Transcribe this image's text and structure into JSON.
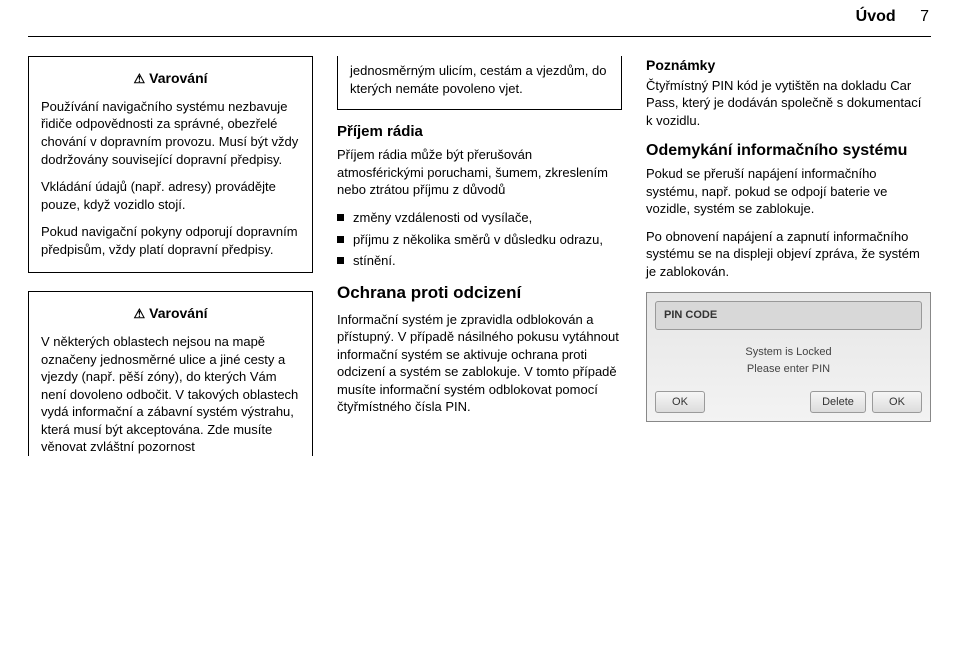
{
  "header": {
    "title": "Úvod",
    "page_number": "7"
  },
  "col1": {
    "warn1": {
      "label": "Varování",
      "p1": "Používání navigačního systému nezbavuje řidiče odpovědnosti za správné, obezřelé chování v dopravním provozu. Musí být vždy dodržovány související dopravní předpisy.",
      "p2": "Vkládání údajů (např. adresy) provádějte pouze, když vozidlo stojí.",
      "p3": "Pokud navigační pokyny odporují dopravním předpisům, vždy platí dopravní předpisy."
    },
    "warn2": {
      "label": "Varování",
      "p1": "V některých oblastech nejsou na mapě označeny jednosměrné ulice a jiné cesty a vjezdy (např. pěší zóny), do kterých Vám není dovoleno odbočit. V takových oblastech vydá informační a zábavní systém výstrahu, která musí být akceptována. Zde musíte věnovat zvláštní pozornost"
    }
  },
  "col2": {
    "fragment": "jednosměrným ulicím, cestám a vjezdům, do kterých nemáte povoleno vjet.",
    "radio_h": "Příjem rádia",
    "radio_p": "Příjem rádia může být přerušován atmosférickými poruchami, šumem, zkreslením nebo ztrátou příjmu z důvodů",
    "bullets": {
      "b1": "změny vzdálenosti od vysílače,",
      "b2": "příjmu z několika směrů v důsledku odrazu,",
      "b3": "stínění."
    },
    "theft_h": "Ochrana proti odcizení",
    "theft_p": "Informační systém je zpravidla odblokován a přístupný. V případě násilného pokusu vytáhnout informační systém se aktivuje ochrana proti odcizení a systém se zablokuje. V tomto případě musíte informační systém odblokovat pomocí čtyřmístného čísla PIN."
  },
  "col3": {
    "notes_h": "Poznámky",
    "notes_p": "Čtyřmístný PIN kód je vytištěn na dokladu Car Pass, který je dodáván společně s dokumentací k vozidlu.",
    "unlock_h": "Odemykání informačního systému",
    "unlock_p1": "Pokud se přeruší napájení informačního systému, např. pokud se odpojí baterie ve vozidle, systém se zablokuje.",
    "unlock_p2": "Po obnovení napájení a zapnutí informačního systému se na displeji objeví zpráva, že systém je zablokován.",
    "ss": {
      "title": "PIN CODE",
      "l1": "System is Locked",
      "l2": "Please enter PIN",
      "ok": "OK",
      "delete": "Delete",
      "ok2": "OK"
    }
  }
}
